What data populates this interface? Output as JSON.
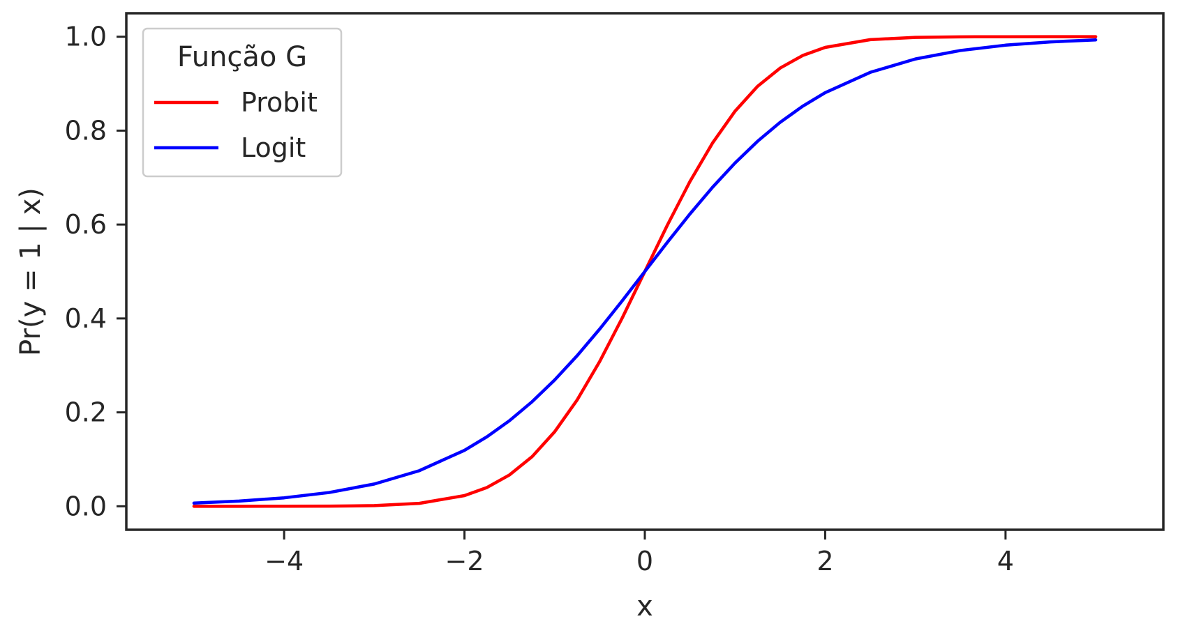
{
  "chart_data": {
    "type": "line",
    "xlabel": "x",
    "ylabel": "Pr(y = 1 | x)",
    "xlim": [
      -5.75,
      5.75
    ],
    "ylim": [
      -0.05,
      1.05
    ],
    "xticks": [
      -4,
      -2,
      0,
      2,
      4
    ],
    "xtick_labels": [
      "−4",
      "−2",
      "0",
      "2",
      "4"
    ],
    "yticks": [
      0.0,
      0.2,
      0.4,
      0.6,
      0.8,
      1.0
    ],
    "ytick_labels": [
      "0.0",
      "0.2",
      "0.4",
      "0.6",
      "0.8",
      "1.0"
    ],
    "grid": false,
    "legend": {
      "title": "Função G",
      "placement": "top-left"
    },
    "series": [
      {
        "name": "Probit",
        "color": "#ff0000",
        "x": [
          -5,
          -4.5,
          -4,
          -3.5,
          -3,
          -2.5,
          -2,
          -1.75,
          -1.5,
          -1.25,
          -1,
          -0.75,
          -0.5,
          -0.25,
          0,
          0.25,
          0.5,
          0.75,
          1,
          1.25,
          1.5,
          1.75,
          2,
          2.5,
          3,
          3.5,
          4,
          4.5,
          5
        ],
        "y": [
          3e-07,
          3.4e-06,
          3.17e-05,
          0.0002326,
          0.0013499,
          0.0062097,
          0.0227501,
          0.0400592,
          0.0668072,
          0.1056498,
          0.1586553,
          0.2266274,
          0.3085375,
          0.4012937,
          0.5,
          0.5987063,
          0.6914625,
          0.7733726,
          0.8413447,
          0.8943502,
          0.9331928,
          0.9599408,
          0.9772499,
          0.9937903,
          0.9986501,
          0.9997674,
          0.9999683,
          0.9999966,
          0.9999997
        ]
      },
      {
        "name": "Logit",
        "color": "#0000ff",
        "x": [
          -5,
          -4.5,
          -4,
          -3.5,
          -3,
          -2.5,
          -2,
          -1.75,
          -1.5,
          -1.25,
          -1,
          -0.75,
          -0.5,
          -0.25,
          0,
          0.25,
          0.5,
          0.75,
          1,
          1.25,
          1.5,
          1.75,
          2,
          2.5,
          3,
          3.5,
          4,
          4.5,
          5
        ],
        "y": [
          0.0066929,
          0.0109869,
          0.0179862,
          0.0293122,
          0.0474259,
          0.0758582,
          0.1192029,
          0.1480472,
          0.1824255,
          0.2227001,
          0.2689414,
          0.3208213,
          0.3775407,
          0.4378235,
          0.5,
          0.5621765,
          0.6224593,
          0.6791787,
          0.7310586,
          0.7772999,
          0.8175745,
          0.8519528,
          0.8807971,
          0.9241418,
          0.9525741,
          0.9706878,
          0.9820138,
          0.9890131,
          0.9933071
        ]
      }
    ]
  }
}
